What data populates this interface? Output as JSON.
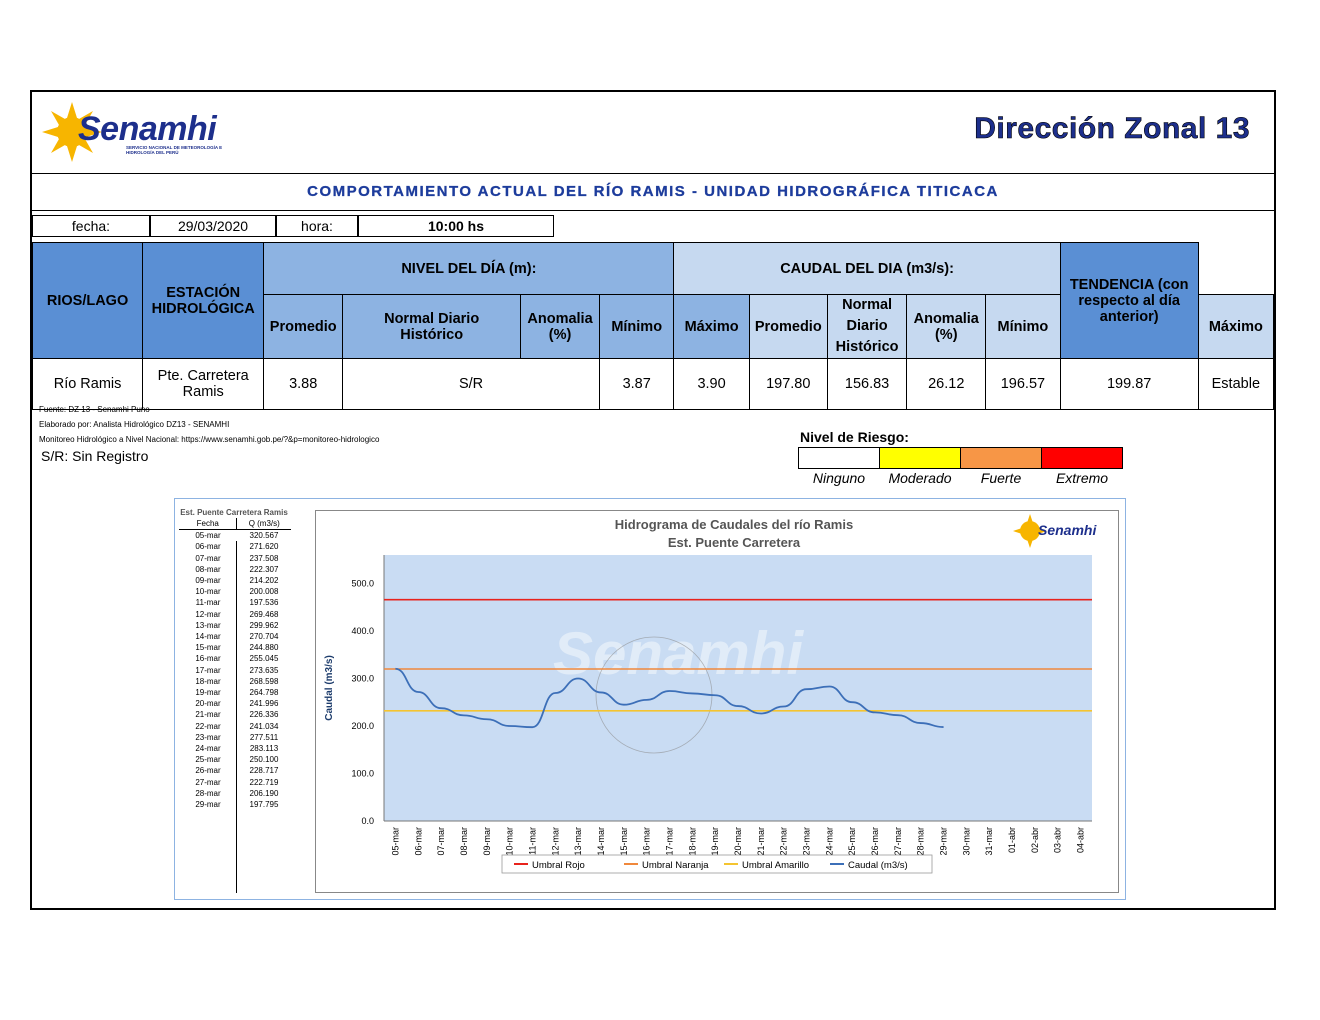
{
  "header": {
    "logo_text": "Senamhi",
    "logo_subtitle": "SERVICIO NACIONAL DE METEOROLOGÍA E HIDROLOGÍA DEL PERÚ",
    "zone_title": "Dirección Zonal 13"
  },
  "subtitle": "COMPORTAMIENTO ACTUAL DEL RÍO RAMIS - UNIDAD HIDROGRÁFICA  TITICACA",
  "info": {
    "fecha_label": "fecha:",
    "fecha_value": "29/03/2020",
    "hora_label": "hora:",
    "hora_value": "10:00 hs"
  },
  "table": {
    "col_rios": "RIOS/LAGO",
    "col_estacion": "ESTACIÓN HIDROLÓGICA",
    "nivel_group": "NIVEL DEL DÍA (m):",
    "caudal_group": "CAUDAL DEL DIA (m3/s):",
    "col_tendencia": "TENDENCIA (con respecto al día anterior)",
    "sub_promedio": "Promedio",
    "sub_normal_nivel": "Normal Diario Histórico",
    "sub_anomalia": "Anomalia (%)",
    "sub_minimo": "Mínimo",
    "sub_maximo": "Máximo",
    "sub_normal_caudal": "Normal Diario Histórico",
    "row": {
      "rio": "Río Ramis",
      "estacion": "Pte. Carretera Ramis",
      "nivel_promedio": "3.88",
      "nivel_normal_anomalia": "S/R",
      "nivel_minimo": "3.87",
      "nivel_maximo": "3.90",
      "caudal_promedio": "197.80",
      "caudal_normal": "156.83",
      "caudal_anomalia": "26.12",
      "caudal_minimo": "196.57",
      "caudal_maximo": "199.87",
      "tendencia": "Estable"
    }
  },
  "notes": {
    "fuente": "Fuente: DZ 13 - Senamhi Puno",
    "elaborado": "Elaborado por: Analista Hidrológico DZ13 - SENAMHI",
    "monitoreo": "Monitoreo Hidrológico a Nivel Nacional: https://www.senamhi.gob.pe/?&p=monitoreo-hidrologico",
    "sr": "S/R: Sin Registro"
  },
  "riesgo": {
    "title": "Nivel de Riesgo:",
    "levels": [
      {
        "label": "Ninguno",
        "color": "#ffffff"
      },
      {
        "label": "Moderado",
        "color": "#ffff00"
      },
      {
        "label": "Fuerte",
        "color": "#f79646"
      },
      {
        "label": "Extremo",
        "color": "#ff0000"
      }
    ]
  },
  "qtable": {
    "title": "Est. Puente Carretera Ramis",
    "col_fecha": "Fecha",
    "col_q": "Q (m3/s)",
    "rows": [
      [
        "05-mar",
        "320.567"
      ],
      [
        "06-mar",
        "271.620"
      ],
      [
        "07-mar",
        "237.508"
      ],
      [
        "08-mar",
        "222.307"
      ],
      [
        "09-mar",
        "214.202"
      ],
      [
        "10-mar",
        "200.008"
      ],
      [
        "11-mar",
        "197.536"
      ],
      [
        "12-mar",
        "269.468"
      ],
      [
        "13-mar",
        "299.962"
      ],
      [
        "14-mar",
        "270.704"
      ],
      [
        "15-mar",
        "244.880"
      ],
      [
        "16-mar",
        "255.045"
      ],
      [
        "17-mar",
        "273.635"
      ],
      [
        "18-mar",
        "268.598"
      ],
      [
        "19-mar",
        "264.798"
      ],
      [
        "20-mar",
        "241.996"
      ],
      [
        "21-mar",
        "226.336"
      ],
      [
        "22-mar",
        "241.034"
      ],
      [
        "23-mar",
        "277.511"
      ],
      [
        "24-mar",
        "283.113"
      ],
      [
        "25-mar",
        "250.100"
      ],
      [
        "26-mar",
        "228.717"
      ],
      [
        "27-mar",
        "222.719"
      ],
      [
        "28-mar",
        "206.190"
      ],
      [
        "29-mar",
        "197.795"
      ]
    ]
  },
  "chart_data": {
    "type": "line",
    "title": "Hidrograma de Caudales del río Ramis",
    "subtitle": "Est. Puente Carretera",
    "ylabel": "Caudal (m3/s)",
    "xlabel": "",
    "ylim": [
      0,
      560
    ],
    "yticks": [
      "0.0",
      "100.0",
      "200.0",
      "300.0",
      "400.0",
      "500.0"
    ],
    "ytick_values": [
      0,
      100,
      200,
      300,
      400,
      500
    ],
    "watermark": "Senamhi",
    "categories": [
      "05-mar",
      "06-mar",
      "07-mar",
      "08-mar",
      "09-mar",
      "10-mar",
      "11-mar",
      "12-mar",
      "13-mar",
      "14-mar",
      "15-mar",
      "16-mar",
      "17-mar",
      "18-mar",
      "19-mar",
      "20-mar",
      "21-mar",
      "22-mar",
      "23-mar",
      "24-mar",
      "25-mar",
      "26-mar",
      "27-mar",
      "28-mar",
      "29-mar",
      "30-mar",
      "31-mar",
      "01-abr",
      "02-abr",
      "03-abr",
      "04-abr"
    ],
    "series": [
      {
        "name": "Umbral Rojo",
        "color": "#e8231c",
        "values": [
          466,
          466,
          466,
          466,
          466,
          466,
          466,
          466,
          466,
          466,
          466,
          466,
          466,
          466,
          466,
          466,
          466,
          466,
          466,
          466,
          466,
          466,
          466,
          466,
          466,
          466,
          466,
          466,
          466,
          466,
          466
        ]
      },
      {
        "name": "Umbral Naranja",
        "color": "#f0883c",
        "values": [
          320,
          320,
          320,
          320,
          320,
          320,
          320,
          320,
          320,
          320,
          320,
          320,
          320,
          320,
          320,
          320,
          320,
          320,
          320,
          320,
          320,
          320,
          320,
          320,
          320,
          320,
          320,
          320,
          320,
          320,
          320
        ]
      },
      {
        "name": "Umbral Amarillo",
        "color": "#f4c430",
        "values": [
          232,
          232,
          232,
          232,
          232,
          232,
          232,
          232,
          232,
          232,
          232,
          232,
          232,
          232,
          232,
          232,
          232,
          232,
          232,
          232,
          232,
          232,
          232,
          232,
          232,
          232,
          232,
          232,
          232,
          232,
          232
        ]
      },
      {
        "name": "Caudal (m3/s)",
        "color": "#3c6fb8",
        "values": [
          320.567,
          271.62,
          237.508,
          222.307,
          214.202,
          200.008,
          197.536,
          269.468,
          299.962,
          270.704,
          244.88,
          255.045,
          273.635,
          268.598,
          264.798,
          241.996,
          226.336,
          241.034,
          277.511,
          283.113,
          250.1,
          228.717,
          222.719,
          206.19,
          197.795,
          null,
          null,
          null,
          null,
          null,
          null
        ]
      }
    ],
    "legend_position": "bottom"
  }
}
